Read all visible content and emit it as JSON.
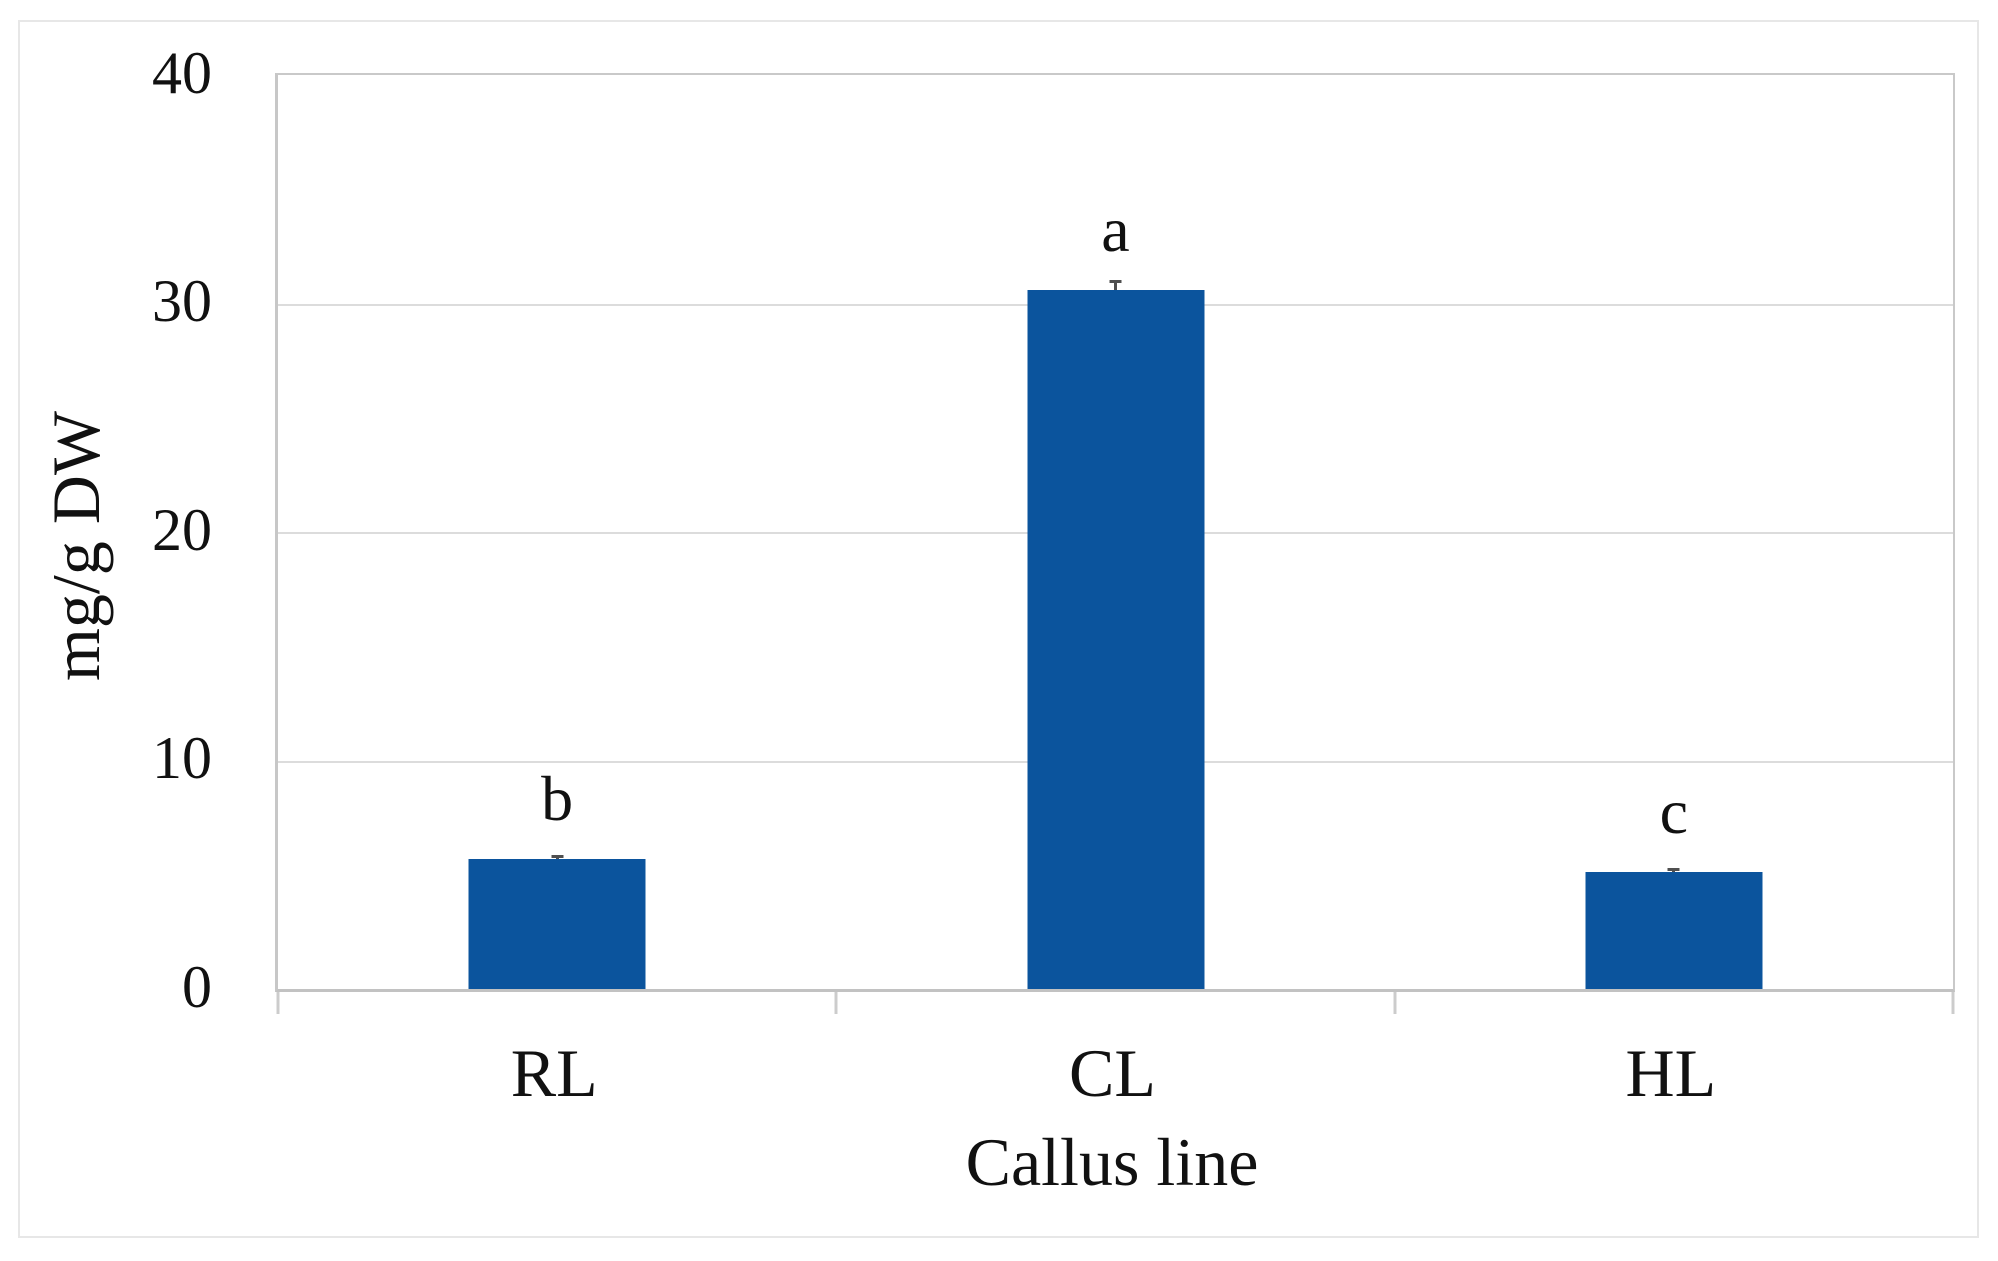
{
  "figure": {
    "background": "#ffffff",
    "frame_color": "#e7e7e7"
  },
  "chart_data": {
    "type": "bar",
    "title": "",
    "categories": [
      "RL",
      "CL",
      "HL"
    ],
    "values": [
      5.7,
      30.6,
      5.1
    ],
    "errors": [
      0.18,
      0.42,
      0.18
    ],
    "sig_letters": [
      "b",
      "a",
      "c"
    ],
    "xlabel": "Callus line",
    "ylabel": "mg/g DW",
    "ylim": [
      0,
      40
    ],
    "yticks": [
      0,
      10,
      20,
      30,
      40
    ],
    "grid": "horizontal",
    "legend": "none",
    "bar_color": "#0b549d",
    "gridline_color": "#dcdcdc",
    "axis_color": "#c5c5c5",
    "error_bar_color": "#4f4f4f"
  }
}
